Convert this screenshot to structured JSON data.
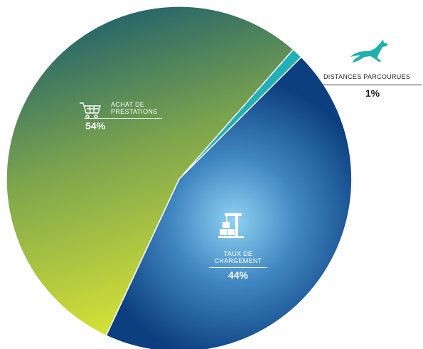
{
  "chart_data": {
    "type": "pie",
    "slices": [
      {
        "label": "ACHAT DE PRESTATIONS",
        "value": 54,
        "pct_label": "54%",
        "icon": "shopping-cart-icon",
        "colors": [
          "#1e5f6c",
          "#cbdc3a"
        ]
      },
      {
        "label": "DISTANCES PARCOURUES",
        "value": 1,
        "pct_label": "1%",
        "icon": "running-gazelle-icon",
        "colors": [
          "#1fb0b8",
          "#1fb0b8"
        ]
      },
      {
        "label": "TAUX DE CHARGEMENT",
        "value": 44,
        "pct_label": "44%",
        "icon": "crane-cargo-icon",
        "colors": [
          "#7cc6ec",
          "#0d4585"
        ]
      }
    ],
    "start_angle_deg": 65,
    "direction": "clockwise",
    "legend": "none"
  },
  "labels": {
    "achat": {
      "line1": "ACHAT DE",
      "line2": "PRESTATIONS",
      "pct": "54%"
    },
    "taux": {
      "line1": "TAUX DE",
      "line2": "CHARGEMENT",
      "pct": "44%"
    },
    "dist": {
      "name": "DISTANCES PARCOURUES",
      "pct": "1%"
    }
  }
}
